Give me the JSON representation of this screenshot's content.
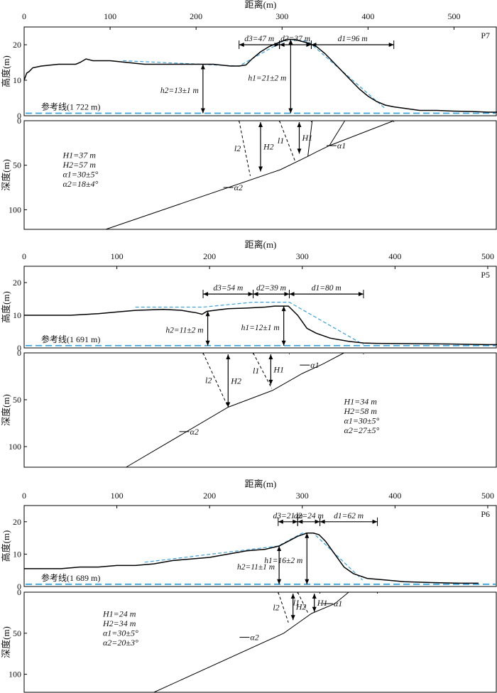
{
  "chart_data": [
    {
      "type": "line",
      "panel_id": "P7",
      "xlabel": "距离(m)",
      "ylabel_top": "高度(m)",
      "ylabel_bottom": "深度(m)",
      "x_ticks": [
        "0",
        "100",
        "200",
        "300",
        "400",
        "500"
      ],
      "xlim": [
        0,
        550
      ],
      "height_ticks": [
        "0",
        "10",
        "20"
      ],
      "height_lim": [
        0,
        25
      ],
      "depth_ticks": [
        "0",
        "50",
        "100"
      ],
      "depth_lim": [
        0,
        122
      ],
      "reference_label": "参考线(1 722 m)",
      "dims": {
        "d3": "d3=47 m",
        "d2": "d2=37 m",
        "d1": "d1=96 m",
        "h2": "h2=13±1 m",
        "h1": "h1=21±2 m"
      },
      "dim_x": {
        "d3": [
          250,
          297
        ],
        "d2": [
          297,
          334
        ],
        "d1": [
          334,
          430
        ],
        "h2": 208,
        "h1": 310
      },
      "dims_y": 20,
      "params": [
        "H1=37 m",
        "H2=57 m",
        "α1=30±5°",
        "α2=18±4°"
      ],
      "fault_labels": {
        "l1": "l1",
        "l2": "l2",
        "H1": "H1",
        "H2": "H2",
        "a1": "α1",
        "a2": "α2"
      },
      "profile": [
        [
          0,
          10
        ],
        [
          3,
          12
        ],
        [
          6,
          12.5
        ],
        [
          10,
          13.5
        ],
        [
          20,
          14
        ],
        [
          40,
          14.5
        ],
        [
          60,
          14.5
        ],
        [
          65,
          15
        ],
        [
          72,
          16
        ],
        [
          80,
          15.5
        ],
        [
          100,
          15.5
        ],
        [
          120,
          15
        ],
        [
          140,
          14.5
        ],
        [
          160,
          14.5
        ],
        [
          200,
          14.5
        ],
        [
          220,
          14.5
        ],
        [
          240,
          14
        ],
        [
          250,
          14
        ],
        [
          258,
          14.3
        ],
        [
          265,
          16
        ],
        [
          275,
          18
        ],
        [
          285,
          19.5
        ],
        [
          295,
          20.5
        ],
        [
          305,
          21.5
        ],
        [
          315,
          21.5
        ],
        [
          322,
          21
        ],
        [
          330,
          20.5
        ],
        [
          340,
          19.5
        ],
        [
          350,
          17.5
        ],
        [
          360,
          15
        ],
        [
          370,
          12.5
        ],
        [
          380,
          10
        ],
        [
          390,
          7.5
        ],
        [
          400,
          5.5
        ],
        [
          410,
          4
        ],
        [
          420,
          3
        ],
        [
          430,
          2.5
        ],
        [
          445,
          2
        ],
        [
          460,
          1.5
        ],
        [
          480,
          1.5
        ],
        [
          500,
          1.3
        ],
        [
          520,
          1.2
        ],
        [
          540,
          1
        ],
        [
          550,
          1
        ]
      ],
      "fit_line": [
        [
          115,
          15.5
        ],
        [
          250,
          14
        ],
        [
          305,
          21.5
        ],
        [
          330,
          21
        ],
        [
          420,
          2
        ]
      ],
      "fault_main": [
        [
          95,
          122
        ],
        [
          298,
          55
        ],
        [
          330,
          40
        ],
        [
          340,
          35
        ],
        [
          355,
          28
        ],
        [
          430,
          0
        ]
      ],
      "fault_splays": [
        [
          [
            330,
            40
          ],
          [
            335,
            0
          ]
        ],
        [
          [
            355,
            28
          ],
          [
            373,
            0
          ]
        ]
      ],
      "dashed_l1": [
        [
          297,
          0
        ],
        [
          315,
          45
        ]
      ],
      "dashed_l2": [
        [
          250,
          0
        ],
        [
          263,
          62
        ]
      ],
      "H1_x": 320,
      "H2_x": 275,
      "H1_span": [
        0,
        37
      ],
      "H2_span": [
        0,
        57
      ],
      "a1_at": [
        360,
        28
      ],
      "a2_at": [
        240,
        75
      ],
      "params_at": [
        45,
        42
      ],
      "tick_marks": [
        250,
        297,
        334,
        430
      ]
    },
    {
      "type": "line",
      "panel_id": "P5",
      "xlabel": "距离(m)",
      "ylabel_top": "高度(m)",
      "ylabel_bottom": "深度(m)",
      "x_ticks": [
        "0",
        "100",
        "200",
        "300",
        "400",
        "500"
      ],
      "xlim": [
        0,
        510
      ],
      "height_ticks": [
        "0",
        "10",
        "20"
      ],
      "height_lim": [
        0,
        25
      ],
      "depth_ticks": [
        "0",
        "50",
        "100"
      ],
      "depth_lim": [
        0,
        122
      ],
      "reference_label": "参考线(1 691 m)",
      "dims": {
        "d3": "d3=54 m",
        "d2": "d2=39 m",
        "d1": "d1=80 m",
        "h2": "h2=11±2 m",
        "h1": "h1=12±1 m"
      },
      "dim_x": {
        "d3": [
          193,
          247
        ],
        "d2": [
          247,
          286
        ],
        "d1": [
          286,
          366
        ],
        "h2": 198,
        "h1": 280
      },
      "dims_y": 16.5,
      "params": [
        "H1=34 m",
        "H2=58 m",
        "α1=30±5°",
        "α2=27±5°"
      ],
      "fault_labels": {
        "l1": "l1",
        "l2": "l2",
        "H1": "H1",
        "H2": "H2",
        "a1": "α1",
        "a2": "α2"
      },
      "profile": [
        [
          0,
          10
        ],
        [
          20,
          10
        ],
        [
          50,
          10
        ],
        [
          80,
          10.5
        ],
        [
          100,
          11
        ],
        [
          120,
          11.5
        ],
        [
          150,
          11.8
        ],
        [
          170,
          11.5
        ],
        [
          180,
          11
        ],
        [
          185,
          10.8
        ],
        [
          192,
          10.3
        ],
        [
          197,
          11.2
        ],
        [
          205,
          11.5
        ],
        [
          220,
          12
        ],
        [
          240,
          12.2
        ],
        [
          260,
          12.5
        ],
        [
          270,
          12.8
        ],
        [
          285,
          12.8
        ],
        [
          295,
          10
        ],
        [
          300,
          8
        ],
        [
          305,
          6
        ],
        [
          315,
          4.5
        ],
        [
          330,
          3
        ],
        [
          350,
          2
        ],
        [
          366,
          1.5
        ],
        [
          380,
          1.4
        ],
        [
          420,
          1.3
        ],
        [
          460,
          1.2
        ],
        [
          500,
          1
        ],
        [
          510,
          1
        ]
      ],
      "fit_line": [
        [
          120,
          12.5
        ],
        [
          193,
          12.5
        ],
        [
          247,
          14
        ],
        [
          286,
          14
        ],
        [
          366,
          1
        ]
      ],
      "fault_main": [
        [
          110,
          122
        ],
        [
          220,
          58
        ],
        [
          268,
          40
        ],
        [
          300,
          22
        ],
        [
          322,
          12
        ],
        [
          345,
          0
        ]
      ],
      "fault_splays": [],
      "dashed_l1": [
        [
          247,
          0
        ],
        [
          267,
          38
        ]
      ],
      "dashed_l2": [
        [
          193,
          0
        ],
        [
          220,
          58
        ]
      ],
      "H1_x": 266,
      "H2_x": 220,
      "H1_span": [
        0,
        34
      ],
      "H2_span": [
        0,
        58
      ],
      "a1_at": [
        305,
        13
      ],
      "a2_at": [
        175,
        84
      ],
      "params_at": [
        345,
        55
      ],
      "tick_marks": [
        193,
        247,
        286,
        366
      ]
    },
    {
      "type": "line",
      "panel_id": "P6",
      "xlabel": "距离(m)",
      "ylabel_top": "高度(m)",
      "ylabel_bottom": "深度(m)",
      "x_ticks": [
        "0",
        "100",
        "200",
        "300",
        "400",
        "500"
      ],
      "xlim": [
        0,
        510
      ],
      "height_ticks": [
        "0",
        "10",
        "20"
      ],
      "height_lim": [
        0,
        25
      ],
      "depth_ticks": [
        "0",
        "50",
        "100"
      ],
      "depth_lim": [
        0,
        122
      ],
      "reference_label": "参考线(1 689 m)",
      "dims": {
        "d3": "d3=21 m",
        "d2": "d2=24 m",
        "d1": "d1=62 m",
        "h2": "h2=11±1 m",
        "h1": "h1=16±2 m"
      },
      "dim_x": {
        "d3": [
          274,
          295
        ],
        "d2": [
          295,
          319
        ],
        "d1": [
          319,
          381
        ],
        "h2": 275,
        "h1": 305
      },
      "dims_y": 20,
      "params": [
        "H1=24 m",
        "H2=34 m",
        "α1=30±5°",
        "α2=20±3°"
      ],
      "fault_labels": {
        "l1": "l1",
        "l2": "l2",
        "H1": "H1",
        "H2": "H2",
        "a1": "α1",
        "a2": "α2"
      },
      "profile": [
        [
          0,
          5.5
        ],
        [
          20,
          5.5
        ],
        [
          40,
          5.5
        ],
        [
          60,
          6
        ],
        [
          80,
          6
        ],
        [
          100,
          6.5
        ],
        [
          120,
          6.5
        ],
        [
          140,
          7
        ],
        [
          160,
          8
        ],
        [
          180,
          8.5
        ],
        [
          200,
          9
        ],
        [
          220,
          10
        ],
        [
          240,
          11
        ],
        [
          260,
          11.5
        ],
        [
          275,
          12.5
        ],
        [
          285,
          14
        ],
        [
          295,
          15.5
        ],
        [
          305,
          16.5
        ],
        [
          312,
          16.5
        ],
        [
          318,
          16
        ],
        [
          325,
          14
        ],
        [
          335,
          10
        ],
        [
          345,
          6
        ],
        [
          355,
          4
        ],
        [
          370,
          2.5
        ],
        [
          390,
          2
        ],
        [
          410,
          1.5
        ],
        [
          440,
          1.2
        ],
        [
          470,
          1
        ],
        [
          490,
          1
        ]
      ],
      "fit_line": [
        [
          130,
          7.5
        ],
        [
          274,
          12.5
        ],
        [
          300,
          16.5
        ],
        [
          312,
          16.5
        ],
        [
          365,
          2
        ]
      ],
      "fault_main": [
        [
          140,
          122
        ],
        [
          280,
          50
        ],
        [
          295,
          38
        ],
        [
          310,
          26
        ],
        [
          335,
          14
        ],
        [
          350,
          0
        ]
      ],
      "fault_splays": [],
      "dashed_l1": [
        [
          295,
          0
        ],
        [
          306,
          25
        ]
      ],
      "dashed_l2": [
        [
          274,
          0
        ],
        [
          285,
          37
        ]
      ],
      "H1_x": 313,
      "H2_x": 290,
      "H1_span": [
        0,
        24
      ],
      "H2_span": [
        0,
        34
      ],
      "a1_at": [
        330,
        14
      ],
      "a2_at": [
        240,
        55
      ],
      "params_at": [
        85,
        30
      ],
      "tick_marks": [
        274,
        295,
        319,
        381
      ]
    }
  ]
}
